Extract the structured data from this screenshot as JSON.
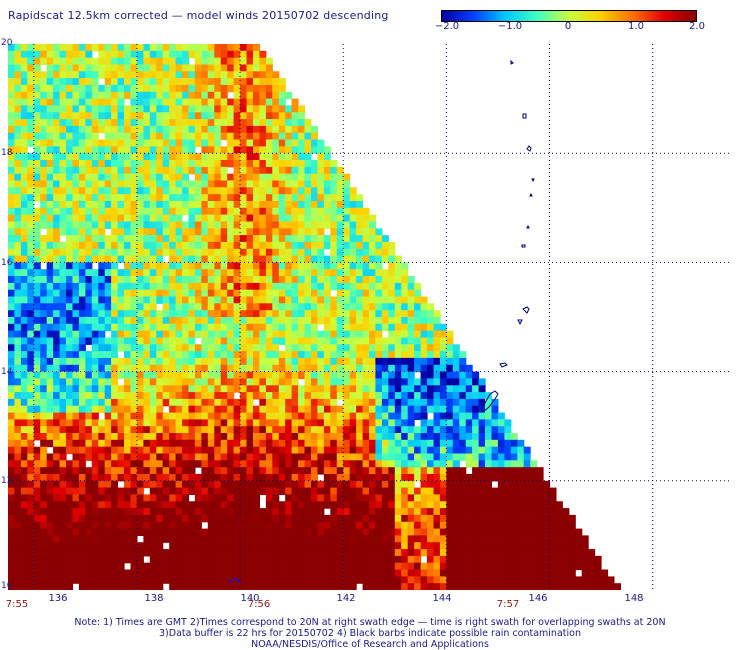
{
  "title": "Rapidscat 12.5km corrected — model winds 20150702 descending",
  "colorbar": {
    "ticks": [
      "−2.0",
      "−1.0",
      "0",
      "1.0",
      "2.0"
    ],
    "range": [
      -2.0,
      2.0
    ],
    "colors": [
      "#0000a0",
      "#0040ff",
      "#00c8ff",
      "#40ffc0",
      "#c8ff40",
      "#ffd000",
      "#ff7000",
      "#e00000",
      "#8b0000"
    ]
  },
  "map": {
    "lon_range": [
      135.5,
      149.5
    ],
    "lat_range": [
      10,
      20
    ],
    "lon_labels": [
      "136",
      "138",
      "140",
      "142",
      "144",
      "146",
      "148"
    ],
    "lat_labels": [
      "20",
      "18",
      "16",
      "14",
      "12",
      "10"
    ],
    "grid": "dotted",
    "land_outline_color": "#000080"
  },
  "times": {
    "t1": "7:55",
    "t2": "7:56",
    "t3": "7:57"
  },
  "notes": {
    "line1": "Note: 1) Times are GMT 2)Times correspond to 20N at right swath edge — time is right swath for overlapping swaths at 20N",
    "line2": "3)Data buffer is 22 hrs for 20150702 4) Black barbs indicate possible rain contamination",
    "line3": "NOAA/NESDIS/Office of Research and Applications"
  }
}
